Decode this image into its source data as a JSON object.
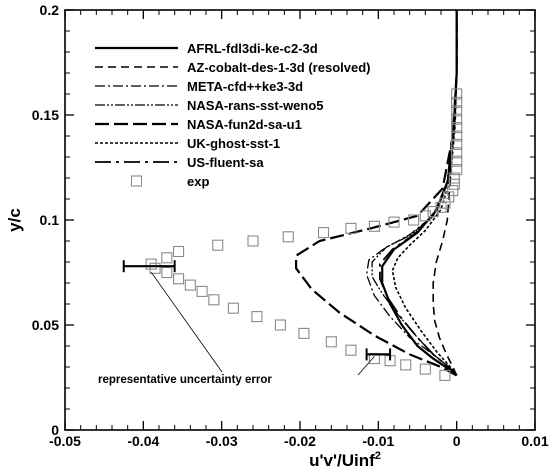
{
  "chart_data": {
    "type": "line",
    "title": "",
    "xlabel_main": "u'v'/Uinf",
    "xlabel_sup": "2",
    "ylabel": "y/c",
    "xlim": [
      -0.05,
      0.01
    ],
    "ylim": [
      0,
      0.2
    ],
    "xticks": [
      -0.05,
      -0.04,
      -0.03,
      -0.02,
      -0.01,
      0,
      0.01
    ],
    "xtick_labels": [
      "-0.05",
      "-0.04",
      "-0.03",
      "-0.02",
      "-0.01",
      "0",
      "0.01"
    ],
    "yticks": [
      0,
      0.05,
      0.1,
      0.15,
      0.2
    ],
    "ytick_labels": [
      "0",
      "0.05",
      "0.1",
      "0.15",
      "0.2"
    ],
    "grid": false,
    "legend_position": "top-left",
    "series": [
      {
        "name": "AFRL-fdl3di-ke-c2-3d",
        "dash": "solid",
        "width": 2.2,
        "points": [
          [
            0,
            0.026
          ],
          [
            -0.001,
            0.029
          ],
          [
            -0.003,
            0.034
          ],
          [
            -0.005,
            0.04
          ],
          [
            -0.007,
            0.05
          ],
          [
            -0.0085,
            0.06
          ],
          [
            -0.0095,
            0.07
          ],
          [
            -0.0095,
            0.078
          ],
          [
            -0.008,
            0.086
          ],
          [
            -0.005,
            0.094
          ],
          [
            -0.0025,
            0.105
          ],
          [
            -0.001,
            0.12
          ],
          [
            -0.0003,
            0.145
          ],
          [
            0,
            0.17
          ],
          [
            0,
            0.2
          ]
        ]
      },
      {
        "name": "AZ-cobalt-des-1-3d (resolved)",
        "dash": "8,5",
        "width": 1.6,
        "points": [
          [
            0,
            0.026
          ],
          [
            -0.0005,
            0.03
          ],
          [
            -0.0013,
            0.036
          ],
          [
            -0.0022,
            0.044
          ],
          [
            -0.0028,
            0.052
          ],
          [
            -0.003,
            0.06
          ],
          [
            -0.003,
            0.07
          ],
          [
            -0.0026,
            0.08
          ],
          [
            -0.0018,
            0.09
          ],
          [
            -0.0012,
            0.1
          ],
          [
            -0.0008,
            0.12
          ],
          [
            -0.0004,
            0.145
          ],
          [
            0,
            0.17
          ],
          [
            0,
            0.2
          ]
        ]
      },
      {
        "name": "META-cfd++ke3-3d",
        "dash": "10,3,2,3",
        "width": 1.3,
        "points": [
          [
            0,
            0.026
          ],
          [
            -0.001,
            0.03
          ],
          [
            -0.003,
            0.036
          ],
          [
            -0.006,
            0.044
          ],
          [
            -0.0085,
            0.054
          ],
          [
            -0.0105,
            0.064
          ],
          [
            -0.0115,
            0.074
          ],
          [
            -0.0112,
            0.081
          ],
          [
            -0.009,
            0.087
          ],
          [
            -0.006,
            0.093
          ],
          [
            -0.003,
            0.102
          ],
          [
            -0.0012,
            0.118
          ],
          [
            -0.0004,
            0.145
          ],
          [
            0,
            0.17
          ],
          [
            0,
            0.2
          ]
        ]
      },
      {
        "name": "NASA-rans-sst-weno5",
        "dash": "10,2,2,2,2,2",
        "width": 1.3,
        "points": [
          [
            0,
            0.026
          ],
          [
            -0.001,
            0.03
          ],
          [
            -0.003,
            0.036
          ],
          [
            -0.005,
            0.044
          ],
          [
            -0.0075,
            0.055
          ],
          [
            -0.0095,
            0.065
          ],
          [
            -0.0108,
            0.073
          ],
          [
            -0.0108,
            0.08
          ],
          [
            -0.009,
            0.087
          ],
          [
            -0.0058,
            0.093
          ],
          [
            -0.003,
            0.102
          ],
          [
            -0.0012,
            0.118
          ],
          [
            -0.0004,
            0.145
          ],
          [
            0,
            0.17
          ],
          [
            0,
            0.2
          ]
        ]
      },
      {
        "name": "NASA-fun2d-sa-u1",
        "dash": "14,5",
        "width": 2.2,
        "points": [
          [
            0,
            0.026
          ],
          [
            -0.002,
            0.03
          ],
          [
            -0.006,
            0.036
          ],
          [
            -0.0105,
            0.045
          ],
          [
            -0.015,
            0.056
          ],
          [
            -0.0185,
            0.067
          ],
          [
            -0.0205,
            0.077
          ],
          [
            -0.0205,
            0.083
          ],
          [
            -0.0175,
            0.09
          ],
          [
            -0.011,
            0.096
          ],
          [
            -0.005,
            0.102
          ],
          [
            -0.0018,
            0.115
          ],
          [
            -0.0005,
            0.14
          ],
          [
            0,
            0.17
          ],
          [
            0,
            0.2
          ]
        ]
      },
      {
        "name": "UK-ghost-sst-1",
        "dash": "3,2",
        "width": 1.6,
        "points": [
          [
            0,
            0.026
          ],
          [
            -0.0008,
            0.03
          ],
          [
            -0.0025,
            0.037
          ],
          [
            -0.0045,
            0.047
          ],
          [
            -0.0065,
            0.058
          ],
          [
            -0.0078,
            0.068
          ],
          [
            -0.0082,
            0.076
          ],
          [
            -0.0075,
            0.082
          ],
          [
            -0.006,
            0.088
          ],
          [
            -0.004,
            0.095
          ],
          [
            -0.002,
            0.105
          ],
          [
            -0.0008,
            0.12
          ],
          [
            -0.0002,
            0.145
          ],
          [
            0,
            0.17
          ],
          [
            0,
            0.2
          ]
        ]
      },
      {
        "name": "US-fluent-sa",
        "dash": "16,5,3,5",
        "width": 1.8,
        "points": [
          [
            0,
            0.026
          ],
          [
            -0.001,
            0.03
          ],
          [
            -0.003,
            0.036
          ],
          [
            -0.005,
            0.044
          ],
          [
            -0.007,
            0.053
          ],
          [
            -0.0088,
            0.063
          ],
          [
            -0.0098,
            0.072
          ],
          [
            -0.0098,
            0.079
          ],
          [
            -0.0082,
            0.086
          ],
          [
            -0.0055,
            0.093
          ],
          [
            -0.003,
            0.102
          ],
          [
            -0.0012,
            0.118
          ],
          [
            -0.0004,
            0.145
          ],
          [
            0,
            0.17
          ],
          [
            0,
            0.2
          ]
        ]
      }
    ],
    "exp": {
      "name": "exp",
      "points": [
        [
          -0.0015,
          0.026
        ],
        [
          -0.004,
          0.029
        ],
        [
          -0.0065,
          0.031
        ],
        [
          -0.0085,
          0.033
        ],
        [
          -0.0105,
          0.034
        ],
        [
          -0.0135,
          0.038
        ],
        [
          -0.016,
          0.042
        ],
        [
          -0.0195,
          0.046
        ],
        [
          -0.0225,
          0.05
        ],
        [
          -0.0255,
          0.054
        ],
        [
          -0.0285,
          0.058
        ],
        [
          -0.031,
          0.062
        ],
        [
          -0.0325,
          0.066
        ],
        [
          -0.034,
          0.069
        ],
        [
          -0.0355,
          0.072
        ],
        [
          -0.037,
          0.075
        ],
        [
          -0.0385,
          0.077
        ],
        [
          -0.039,
          0.079
        ],
        [
          -0.037,
          0.082
        ],
        [
          -0.0355,
          0.085
        ],
        [
          -0.0305,
          0.088
        ],
        [
          -0.026,
          0.09
        ],
        [
          -0.0215,
          0.092
        ],
        [
          -0.017,
          0.094
        ],
        [
          -0.0135,
          0.096
        ],
        [
          -0.0105,
          0.097
        ],
        [
          -0.008,
          0.099
        ],
        [
          -0.0055,
          0.1
        ],
        [
          -0.004,
          0.102
        ],
        [
          -0.003,
          0.104
        ],
        [
          -0.002,
          0.106
        ],
        [
          -0.0015,
          0.108
        ],
        [
          -0.001,
          0.111
        ],
        [
          -0.0005,
          0.114
        ],
        [
          -0.0003,
          0.117
        ],
        [
          -0.0003,
          0.12
        ],
        [
          0,
          0.124
        ],
        [
          0,
          0.128
        ],
        [
          0,
          0.132
        ],
        [
          0,
          0.136
        ],
        [
          0,
          0.14
        ],
        [
          0,
          0.144
        ],
        [
          0,
          0.148
        ],
        [
          0,
          0.152
        ],
        [
          0,
          0.156
        ],
        [
          0,
          0.16
        ]
      ]
    },
    "error_bars": [
      {
        "x1": -0.0425,
        "x2": -0.036,
        "y": 0.078
      },
      {
        "x1": -0.0115,
        "x2": -0.0085,
        "y": 0.036
      }
    ],
    "annotation": {
      "text": "representative uncertainty error",
      "leader_targets": [
        [
          -0.039,
          0.078
        ],
        [
          -0.0105,
          0.036
        ]
      ]
    }
  }
}
